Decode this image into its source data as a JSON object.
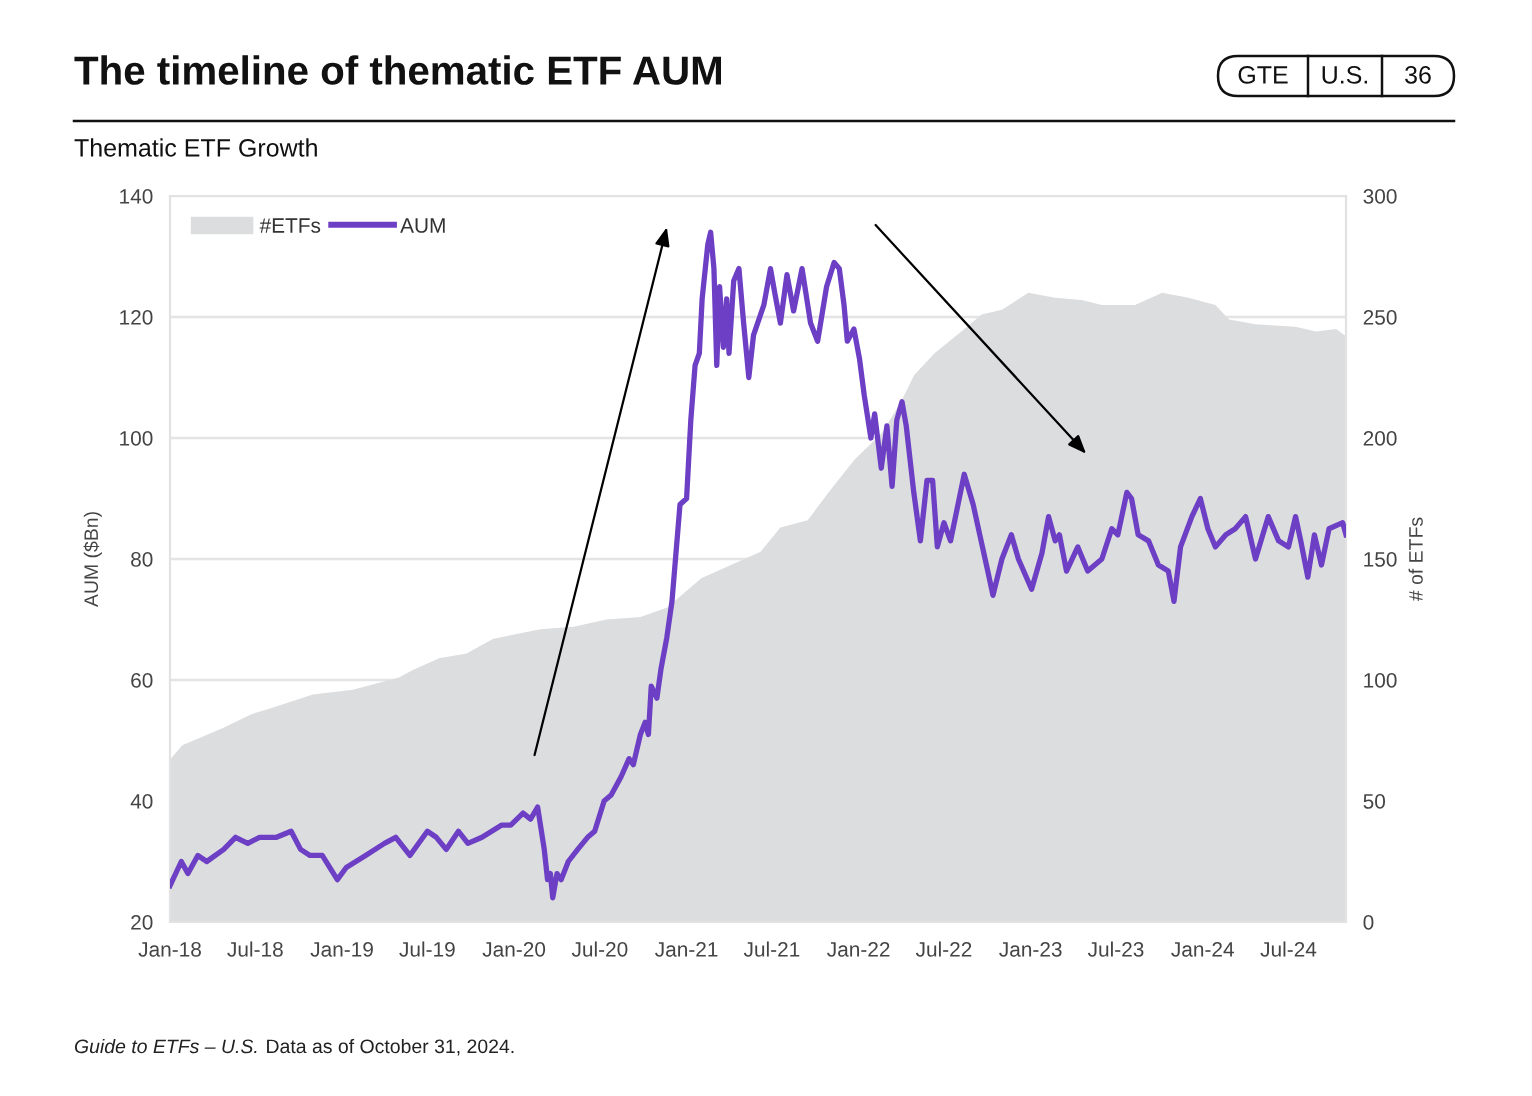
{
  "chart_data": {
    "type": "line",
    "title": "The timeline of thematic ETF AUM",
    "subtitle": "Thematic ETF Growth",
    "ylabel": "AUM ($Bn)",
    "y2label": "# of ETFs",
    "annotations": [
      "GTE",
      "U.S.",
      "36",
      "Guide to ETFs – U.S.",
      "Data as of October 31, 2024."
    ],
    "xlim": [
      "2018-01-01",
      "2024-10-31"
    ],
    "xticks": [
      {
        "value": "2018-01-01",
        "label": "Jan-18"
      },
      {
        "value": "2018-07-01",
        "label": "Jul-18"
      },
      {
        "value": "2019-01-01",
        "label": "Jan-19"
      },
      {
        "value": "2019-07-01",
        "label": "Jul-19"
      },
      {
        "value": "2020-01-01",
        "label": "Jan-20"
      },
      {
        "value": "2020-07-01",
        "label": "Jul-20"
      },
      {
        "value": "2021-01-01",
        "label": "Jan-21"
      },
      {
        "value": "2021-07-01",
        "label": "Jul-21"
      },
      {
        "value": "2022-01-01",
        "label": "Jan-22"
      },
      {
        "value": "2022-07-01",
        "label": "Jul-22"
      },
      {
        "value": "2023-01-01",
        "label": "Jan-23"
      },
      {
        "value": "2023-07-01",
        "label": "Jul-23"
      },
      {
        "value": "2024-01-01",
        "label": "Jan-24"
      },
      {
        "value": "2024-07-01",
        "label": "Jul-24"
      }
    ],
    "ylim": [
      20,
      140
    ],
    "yticks": [
      20,
      40,
      60,
      80,
      100,
      120,
      140
    ],
    "y2lim": [
      0,
      300
    ],
    "y2ticks": [
      0,
      50,
      100,
      150,
      200,
      250,
      300
    ],
    "grid": "y",
    "legend": "top left",
    "series": [
      {
        "name": "#ETFs",
        "type": "area",
        "axis": "y2",
        "color": "#dcdddf",
        "x": [
          "2018-01-01",
          "2018-01-27",
          "2018-04-21",
          "2018-06-24",
          "2018-07-29",
          "2018-10-31",
          "2019-01-24",
          "2019-05-02",
          "2019-05-30",
          "2019-07-26",
          "2019-09-22",
          "2019-11-18",
          "2020-02-26",
          "2020-05-06",
          "2020-07-15",
          "2020-09-25",
          "2020-11-21",
          "2021-02-01",
          "2021-04-11",
          "2021-06-07",
          "2021-07-19",
          "2021-09-15",
          "2021-10-27",
          "2021-12-23",
          "2022-02-19",
          "2022-04-01",
          "2022-04-29",
          "2022-06-11",
          "2022-08-07",
          "2022-09-19",
          "2022-11-01",
          "2022-12-27",
          "2023-02-22",
          "2023-04-19",
          "2023-06-01",
          "2023-08-10",
          "2023-10-07",
          "2023-12-02",
          "2024-01-28",
          "2024-02-26",
          "2024-04-22",
          "2024-07-16",
          "2024-08-28",
          "2024-10-10",
          "2024-10-31"
        ],
        "values": [
          67,
          73,
          80,
          86,
          88,
          94,
          96,
          101,
          104,
          109,
          111,
          117,
          121,
          122,
          125,
          126,
          130,
          142,
          148,
          153,
          163,
          166,
          177,
          191,
          202,
          215,
          226,
          235,
          244,
          251,
          253,
          260,
          258,
          257,
          255,
          255,
          260,
          258,
          255,
          249,
          247,
          246,
          244,
          245,
          242
        ]
      },
      {
        "name": "AUM",
        "color": "#6c3fc4",
        "x": [
          "2018-01-01",
          "2018-01-25",
          "2018-02-08",
          "2018-03-01",
          "2018-03-20",
          "2018-04-25",
          "2018-05-20",
          "2018-06-15",
          "2018-07-10",
          "2018-08-15",
          "2018-09-15",
          "2018-10-05",
          "2018-10-25",
          "2018-11-20",
          "2018-12-22",
          "2019-01-10",
          "2019-02-20",
          "2019-04-01",
          "2019-04-25",
          "2019-05-25",
          "2019-07-01",
          "2019-07-20",
          "2019-08-10",
          "2019-09-05",
          "2019-09-25",
          "2019-10-25",
          "2019-12-05",
          "2019-12-25",
          "2020-01-20",
          "2020-02-05",
          "2020-02-20",
          "2020-03-05",
          "2020-03-12",
          "2020-03-18",
          "2020-03-23",
          "2020-04-01",
          "2020-04-10",
          "2020-04-25",
          "2020-05-15",
          "2020-06-05",
          "2020-06-20",
          "2020-07-10",
          "2020-07-25",
          "2020-08-15",
          "2020-09-01",
          "2020-09-10",
          "2020-09-25",
          "2020-10-05",
          "2020-10-12",
          "2020-10-18",
          "2020-10-30",
          "2020-11-08",
          "2020-11-20",
          "2020-12-01",
          "2020-12-18",
          "2021-01-01",
          "2021-01-10",
          "2021-01-19",
          "2021-01-28",
          "2021-02-03",
          "2021-02-15",
          "2021-02-21",
          "2021-02-28",
          "2021-03-06",
          "2021-03-12",
          "2021-03-20",
          "2021-03-27",
          "2021-04-01",
          "2021-04-11",
          "2021-04-22",
          "2021-05-02",
          "2021-05-13",
          "2021-05-23",
          "2021-06-14",
          "2021-06-28",
          "2021-07-07",
          "2021-07-19",
          "2021-08-02",
          "2021-08-16",
          "2021-09-03",
          "2021-09-21",
          "2021-10-06",
          "2021-10-25",
          "2021-11-10",
          "2021-11-21",
          "2021-12-01",
          "2021-12-08",
          "2021-12-22",
          "2022-01-03",
          "2022-01-13",
          "2022-01-27",
          "2022-02-04",
          "2022-02-18",
          "2022-03-02",
          "2022-03-13",
          "2022-03-23",
          "2022-04-03",
          "2022-04-12",
          "2022-04-28",
          "2022-05-12",
          "2022-05-26",
          "2022-06-07",
          "2022-06-17",
          "2022-07-01",
          "2022-07-15",
          "2022-08-13",
          "2022-09-01",
          "2022-09-15",
          "2022-10-02",
          "2022-10-13",
          "2022-11-01",
          "2022-11-21",
          "2022-12-06",
          "2023-01-03",
          "2023-01-25",
          "2023-02-08",
          "2023-02-22",
          "2023-03-03",
          "2023-03-18",
          "2023-04-11",
          "2023-05-02",
          "2023-06-01",
          "2023-06-22",
          "2023-07-05",
          "2023-07-24",
          "2023-08-03",
          "2023-08-17",
          "2023-09-08",
          "2023-09-29",
          "2023-10-20",
          "2023-11-01",
          "2023-11-15",
          "2023-12-09",
          "2023-12-27",
          "2024-01-12",
          "2024-01-28",
          "2024-02-19",
          "2024-03-10",
          "2024-04-01",
          "2024-04-22",
          "2024-05-19",
          "2024-06-10",
          "2024-07-01",
          "2024-07-16",
          "2024-07-27",
          "2024-08-11",
          "2024-08-25",
          "2024-09-09",
          "2024-09-25",
          "2024-10-24",
          "2024-10-31"
        ],
        "values": [
          26,
          30,
          28,
          31,
          30,
          32,
          34,
          33,
          34,
          34,
          35,
          32,
          31,
          31,
          27,
          29,
          31,
          33,
          34,
          31,
          35,
          34,
          32,
          35,
          33,
          34,
          36,
          36,
          38,
          37,
          39,
          32,
          27,
          28,
          24,
          28,
          27,
          30,
          32,
          34,
          35,
          40,
          41,
          44,
          47,
          46,
          51,
          53,
          51,
          59,
          57,
          62,
          67,
          73,
          89,
          90,
          103,
          112,
          114,
          123,
          132,
          134,
          128,
          112,
          125,
          115,
          123,
          114,
          126,
          128,
          119,
          110,
          117,
          122,
          128,
          124,
          119,
          127,
          121,
          128,
          119,
          116,
          125,
          129,
          128,
          122,
          116,
          118,
          113,
          107,
          100,
          104,
          95,
          102,
          92,
          103,
          106,
          102,
          91,
          83,
          93,
          93,
          82,
          86,
          83,
          94,
          89,
          84,
          78,
          74,
          80,
          84,
          80,
          75,
          81,
          87,
          83,
          84,
          78,
          82,
          78,
          80,
          85,
          84,
          91,
          90,
          84,
          83,
          79,
          78,
          73,
          82,
          87,
          90,
          85,
          82,
          84,
          85,
          87,
          80,
          87,
          83,
          82,
          87,
          83,
          77,
          84,
          79,
          85,
          86,
          84
        ]
      }
    ]
  }
}
